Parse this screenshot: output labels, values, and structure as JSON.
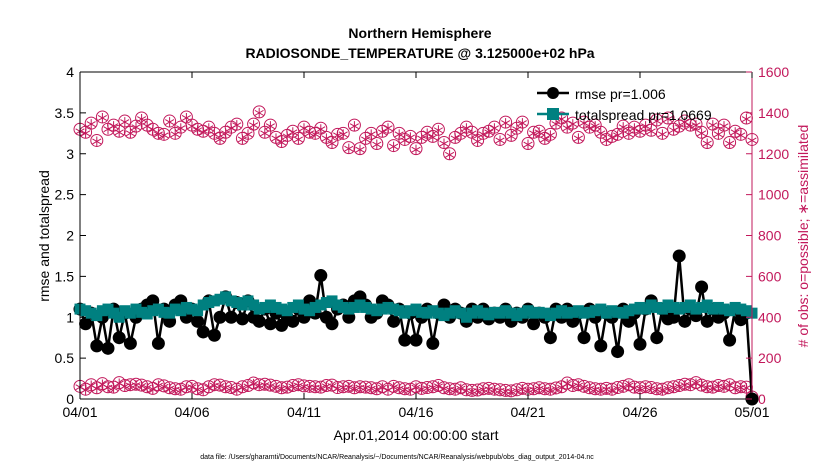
{
  "chart_data": {
    "type": "line",
    "title": "Northern Hemisphere",
    "subtitle": "RADIOSONDE_TEMPERATURE @ 3.125000e+02 hPa",
    "xlabel": "Apr.01,2014 00:00:00 start",
    "ylabel_left": "rmse and totalspread",
    "ylabel_right": "# of obs: o=possible; ∗=assimilated",
    "footnote": "data file: /Users/gharamti/Documents/NCAR/Reanalysis/~/Documents/NCAR/Reanalysis/webpub/obs_diag_output_2014-04.nc",
    "xlim": [
      0,
      30
    ],
    "ylim_left": [
      0,
      4
    ],
    "ylim_right": [
      0,
      1600
    ],
    "x_ticks": [
      0,
      5,
      10,
      15,
      20,
      25,
      30
    ],
    "x_tick_labels": [
      "04/01",
      "04/06",
      "04/11",
      "04/16",
      "04/21",
      "04/26",
      "05/01"
    ],
    "y_left_ticks": [
      "0",
      "0.5",
      "1",
      "1.5",
      "2",
      "2.5",
      "3",
      "3.5",
      "4"
    ],
    "y_right_ticks": [
      "0",
      "200",
      "400",
      "600",
      "800",
      "1000",
      "1200",
      "1400",
      "1600"
    ],
    "colors": {
      "rmse": "#000000",
      "totalspread": "#008080",
      "obs": "#c2185b",
      "axis": "#000000"
    },
    "legend": [
      "rmse pr=1.006",
      "totalspread pr=1.0669"
    ],
    "legend_position": "top-right",
    "x": [
      0.0,
      0.25,
      0.5,
      0.75,
      1.0,
      1.25,
      1.5,
      1.75,
      2.0,
      2.25,
      2.5,
      2.75,
      3.0,
      3.25,
      3.5,
      3.75,
      4.0,
      4.25,
      4.5,
      4.75,
      5.0,
      5.25,
      5.5,
      5.75,
      6.0,
      6.25,
      6.5,
      6.75,
      7.0,
      7.25,
      7.5,
      7.75,
      8.0,
      8.25,
      8.5,
      8.75,
      9.0,
      9.25,
      9.5,
      9.75,
      10.0,
      10.25,
      10.5,
      10.75,
      11.0,
      11.25,
      11.5,
      11.75,
      12.0,
      12.25,
      12.5,
      12.75,
      13.0,
      13.25,
      13.5,
      13.75,
      14.0,
      14.25,
      14.5,
      14.75,
      15.0,
      15.25,
      15.5,
      15.75,
      16.0,
      16.25,
      16.5,
      16.75,
      17.0,
      17.25,
      17.5,
      17.75,
      18.0,
      18.25,
      18.5,
      18.75,
      19.0,
      19.25,
      19.5,
      19.75,
      20.0,
      20.25,
      20.5,
      20.75,
      21.0,
      21.25,
      21.5,
      21.75,
      22.0,
      22.25,
      22.5,
      22.75,
      23.0,
      23.25,
      23.5,
      23.75,
      24.0,
      24.25,
      24.5,
      24.75,
      25.0,
      25.25,
      25.5,
      25.75,
      26.0,
      26.25,
      26.5,
      26.75,
      27.0,
      27.25,
      27.5,
      27.75,
      28.0,
      28.25,
      28.5,
      28.75,
      29.0,
      29.25,
      29.5,
      29.75,
      30.0
    ],
    "series": [
      {
        "name": "rmse",
        "style": "line-circle",
        "color": "#000000",
        "values": [
          1.1,
          0.92,
          1.05,
          0.65,
          1.0,
          0.62,
          1.1,
          0.75,
          1.05,
          0.68,
          1.0,
          1.1,
          1.15,
          1.2,
          0.68,
          1.1,
          0.95,
          1.15,
          1.2,
          1.0,
          1.1,
          0.95,
          0.82,
          1.2,
          0.78,
          1.0,
          1.25,
          1.0,
          1.18,
          0.98,
          1.2,
          1.0,
          0.95,
          1.1,
          0.92,
          1.05,
          0.9,
          1.0,
          0.95,
          1.1,
          1.0,
          1.2,
          1.05,
          1.51,
          1.0,
          0.92,
          1.1,
          1.15,
          1.0,
          1.2,
          1.25,
          1.15,
          1.0,
          1.05,
          1.2,
          1.15,
          0.95,
          1.1,
          0.72,
          1.05,
          0.72,
          1.0,
          1.1,
          0.68,
          1.05,
          1.15,
          1.0,
          1.1,
          1.05,
          0.95,
          1.1,
          1.0,
          1.1,
          0.98,
          1.05,
          1.0,
          1.1,
          0.95,
          1.05,
          1.0,
          1.1,
          0.92,
          1.05,
          1.0,
          0.75,
          1.1,
          1.0,
          1.1,
          0.95,
          1.05,
          0.75,
          1.1,
          1.0,
          0.65,
          1.05,
          1.0,
          0.58,
          1.1,
          0.95,
          1.05,
          0.67,
          1.1,
          1.2,
          0.75,
          1.1,
          0.98,
          1.0,
          1.75,
          0.95,
          1.1,
          1.02,
          1.37,
          0.95,
          1.1,
          1.0,
          1.05,
          0.72,
          1.1,
          0.97,
          1.05,
          0.0
        ]
      },
      {
        "name": "totalspread",
        "style": "line-square",
        "color": "#008080",
        "values": [
          1.1,
          1.08,
          1.05,
          1.02,
          1.08,
          1.1,
          1.05,
          1.0,
          1.08,
          1.05,
          1.1,
          1.06,
          1.04,
          1.08,
          1.1,
          1.06,
          1.05,
          1.1,
          1.08,
          1.12,
          1.1,
          1.08,
          1.15,
          1.18,
          1.2,
          1.22,
          1.25,
          1.2,
          1.18,
          1.15,
          1.2,
          1.15,
          1.1,
          1.12,
          1.15,
          1.12,
          1.1,
          1.08,
          1.12,
          1.15,
          1.1,
          1.08,
          1.12,
          1.15,
          1.18,
          1.2,
          1.15,
          1.12,
          1.1,
          1.12,
          1.15,
          1.12,
          1.1,
          1.08,
          1.1,
          1.12,
          1.1,
          1.08,
          1.05,
          1.08,
          1.1,
          1.06,
          1.05,
          1.08,
          1.05,
          1.02,
          1.05,
          1.08,
          1.05,
          1.0,
          1.05,
          1.08,
          1.05,
          1.03,
          1.06,
          1.05,
          1.08,
          1.05,
          1.02,
          1.05,
          1.08,
          1.05,
          1.06,
          1.05,
          1.02,
          1.05,
          1.08,
          1.05,
          1.06,
          1.08,
          1.05,
          1.06,
          1.08,
          1.1,
          1.05,
          1.08,
          1.06,
          1.05,
          1.08,
          1.1,
          1.12,
          1.1,
          1.15,
          1.12,
          1.1,
          1.15,
          1.12,
          1.1,
          1.12,
          1.15,
          1.1,
          1.12,
          1.15,
          1.1,
          1.12,
          1.1,
          1.08,
          1.12,
          1.1,
          1.08,
          1.05
        ]
      },
      {
        "name": "obs_possible",
        "axis": "right",
        "style": "circle",
        "color": "#c2185b",
        "values": [
          1320,
          1305,
          1350,
          1265,
          1380,
          1320,
          1340,
          1310,
          1360,
          1305,
          1335,
          1375,
          1340,
          1320,
          1300,
          1295,
          1360,
          1300,
          1330,
          1380,
          1340,
          1320,
          1310,
          1330,
          1300,
          1275,
          1305,
          1330,
          1345,
          1275,
          1300,
          1345,
          1405,
          1305,
          1340,
          1280,
          1260,
          1290,
          1310,
          1275,
          1330,
          1305,
          1300,
          1325,
          1280,
          1255,
          1295,
          1300,
          1230,
          1340,
          1225,
          1275,
          1300,
          1250,
          1310,
          1330,
          1240,
          1300,
          1270,
          1285,
          1225,
          1280,
          1305,
          1285,
          1320,
          1255,
          1200,
          1280,
          1300,
          1330,
          1305,
          1265,
          1300,
          1310,
          1330,
          1270,
          1355,
          1290,
          1325,
          1355,
          1250,
          1305,
          1310,
          1275,
          1295,
          1350,
          1375,
          1330,
          1350,
          1280,
          1355,
          1330,
          1340,
          1305,
          1270,
          1285,
          1295,
          1335,
          1300,
          1330,
          1310,
          1340,
          1315,
          1365,
          1300,
          1375,
          1320,
          1335,
          1360,
          1340,
          1345,
          1305,
          1255,
          1345,
          1300,
          1340,
          1255,
          1310,
          1295,
          1375,
          1270
        ]
      },
      {
        "name": "obs_assimilated",
        "axis": "right",
        "style": "asterisk",
        "color": "#c2185b",
        "values": [
          1310,
          1300,
          1345,
          1260,
          1375,
          1320,
          1335,
          1305,
          1355,
          1300,
          1330,
          1370,
          1335,
          1318,
          1295,
          1290,
          1355,
          1295,
          1325,
          1375,
          1335,
          1315,
          1305,
          1325,
          1295,
          1270,
          1300,
          1325,
          1340,
          1270,
          1295,
          1340,
          1400,
          1300,
          1335,
          1275,
          1255,
          1285,
          1305,
          1270,
          1325,
          1300,
          1295,
          1320,
          1275,
          1250,
          1290,
          1295,
          1225,
          1335,
          1220,
          1270,
          1295,
          1245,
          1305,
          1325,
          1235,
          1295,
          1265,
          1280,
          1220,
          1275,
          1300,
          1280,
          1315,
          1250,
          1195,
          1275,
          1295,
          1325,
          1300,
          1260,
          1295,
          1305,
          1325,
          1265,
          1350,
          1285,
          1320,
          1350,
          1245,
          1300,
          1305,
          1270,
          1290,
          1345,
          1370,
          1325,
          1345,
          1275,
          1350,
          1325,
          1335,
          1300,
          1265,
          1280,
          1290,
          1330,
          1295,
          1325,
          1305,
          1335,
          1310,
          1360,
          1295,
          1370,
          1315,
          1330,
          1355,
          1335,
          1340,
          1300,
          1250,
          1340,
          1295,
          1335,
          1250,
          1305,
          1290,
          1370,
          1265
        ]
      },
      {
        "name": "obs_possible_low",
        "axis": "right",
        "style": "circle",
        "color": "#c2185b",
        "values": [
          62,
          48,
          70,
          55,
          75,
          60,
          58,
          80,
          66,
          70,
          72,
          68,
          60,
          52,
          70,
          64,
          55,
          50,
          48,
          60,
          62,
          50,
          45,
          60,
          70,
          68,
          60,
          56,
          48,
          60,
          66,
          78,
          70,
          72,
          68,
          62,
          55,
          58,
          66,
          70,
          64,
          62,
          60,
          58,
          66,
          68,
          56,
          60,
          62,
          55,
          60,
          58,
          55,
          50,
          60,
          48,
          62,
          55,
          50,
          48,
          60,
          52,
          56,
          60,
          66,
          55,
          50,
          48,
          55,
          45,
          42,
          44,
          50,
          52,
          48,
          45,
          42,
          40,
          45,
          52,
          48,
          50,
          55,
          50,
          48,
          54,
          60,
          78,
          66,
          70,
          62,
          55,
          50,
          48,
          52,
          48,
          56,
          62,
          70,
          58,
          55,
          60,
          56,
          50,
          48,
          55,
          60,
          66,
          72,
          70,
          80,
          68,
          60,
          58,
          66,
          62,
          70,
          55,
          60,
          58,
          10
        ]
      },
      {
        "name": "obs_assimilated_low",
        "axis": "right",
        "style": "asterisk",
        "color": "#c2185b",
        "values": [
          58,
          44,
          66,
          51,
          71,
          56,
          54,
          76,
          62,
          66,
          68,
          64,
          56,
          48,
          66,
          60,
          51,
          46,
          44,
          56,
          58,
          46,
          41,
          56,
          66,
          64,
          56,
          52,
          44,
          56,
          62,
          74,
          66,
          68,
          64,
          58,
          51,
          54,
          62,
          66,
          60,
          58,
          56,
          54,
          62,
          64,
          52,
          56,
          58,
          51,
          56,
          54,
          51,
          46,
          56,
          44,
          58,
          51,
          46,
          44,
          56,
          48,
          52,
          56,
          62,
          51,
          46,
          44,
          51,
          41,
          38,
          40,
          46,
          48,
          44,
          41,
          38,
          36,
          41,
          48,
          44,
          46,
          51,
          46,
          44,
          50,
          56,
          74,
          62,
          66,
          58,
          51,
          46,
          44,
          48,
          44,
          52,
          58,
          66,
          54,
          51,
          56,
          52,
          46,
          44,
          51,
          56,
          62,
          68,
          66,
          76,
          64,
          56,
          54,
          62,
          58,
          66,
          51,
          56,
          54,
          6
        ]
      }
    ]
  }
}
